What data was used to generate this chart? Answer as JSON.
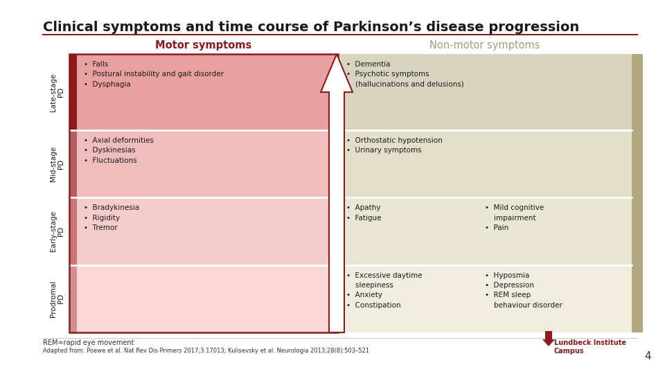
{
  "title": "Clinical symptoms and time course of Parkinson’s disease progression",
  "title_fontsize": 14,
  "title_fontweight": "bold",
  "bg_color": "#ffffff",
  "title_line_color": "#8b1a1a",
  "motor_header": "Motor symptoms",
  "nonmotor_header": "Non-motor symptoms",
  "motor_header_color": "#8b1a1a",
  "nonmotor_header_color": "#9e9e7a",
  "row_labels": [
    "Late-stage\nPD",
    "Mid-stage\nPD",
    "Early-stage\nPD",
    "Prodromal\nPD"
  ],
  "row_label_fontsize": 7.5,
  "motor_bg_colors": [
    "#e8a0a0",
    "#f0bcbc",
    "#f5cccc",
    "#fad8d8"
  ],
  "motor_side_colors": [
    "#8b1a1a",
    "#b56060",
    "#c87878",
    "#d49090"
  ],
  "nonmotor_bg_colors": [
    "#d8d4c0",
    "#e2deca",
    "#eae6d4",
    "#f0ece0"
  ],
  "nonmotor_side_color": "#b0a880",
  "motor_texts": [
    "•  Falls\n•  Postural instability and gait disorder\n•  Dysphagia",
    "•  Axial deformities\n•  Dyskinesias\n•  Fluctuations",
    "•  Bradykinesia\n•  Rigidity\n•  Tremor",
    ""
  ],
  "nonmotor_texts_col1": [
    "•  Dementia\n•  Psychotic symptoms\n    (hallucinations and delusions)",
    "•  Orthostatic hypotension\n•  Urinary symptoms",
    "•  Apathy\n•  Fatigue",
    "•  Excessive daytime\n    sleepiness\n•  Anxiety\n•  Constipation"
  ],
  "nonmotor_texts_col2": [
    "",
    "",
    "•  Mild cognitive\n    impairment\n•  Pain",
    "•  Hyposmia\n•  Depression\n•  REM sleep\n    behaviour disorder"
  ],
  "text_fontsize": 7.5,
  "footer_text": "REM=rapid eye movement",
  "citation_text": "Adapted from: Poewe et al. Nat Rev Dis Primers 2017;3:17013; Kulisevsky et al. Neurologia 2013;28(8):503–521",
  "page_number": "4"
}
